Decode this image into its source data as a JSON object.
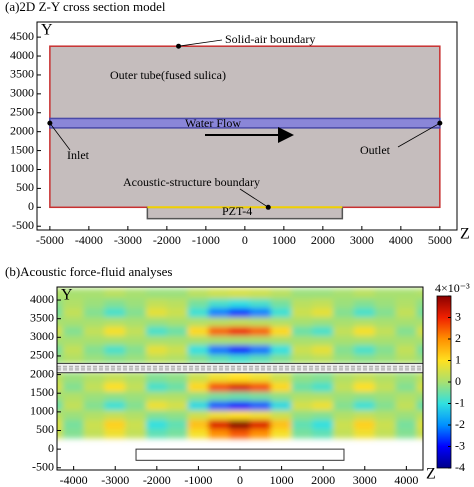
{
  "chart_data": [
    {
      "type": "schematic",
      "title": "(a)2D Z-Y cross section model",
      "xlabel": "Z",
      "ylabel": "Y",
      "xlim": [
        -5330,
        5440
      ],
      "ylim": [
        -600,
        4900
      ],
      "xticks": [
        -5000,
        -4000,
        -3000,
        -2000,
        -1000,
        0,
        1000,
        2000,
        3000,
        4000,
        5000
      ],
      "yticks": [
        -500,
        0,
        500,
        1000,
        1500,
        2000,
        2500,
        3000,
        3500,
        4000,
        4500
      ],
      "regions": [
        {
          "label": "Outer tube(fused sulica)",
          "x": [
            -5000,
            5000
          ],
          "y": [
            0,
            4260
          ],
          "fill": "#c5bdbd",
          "stroke": "#c83030"
        },
        {
          "label": "Water Flow",
          "x": [
            -5000,
            5000
          ],
          "y": [
            2100,
            2350
          ],
          "fill": "#8a86d8",
          "stroke": "#4a4aa8"
        },
        {
          "label": "PZT-4",
          "x": [
            -2500,
            2500
          ],
          "y": [
            -300,
            0
          ],
          "fill": "#c5bdbd",
          "stroke": "#555555"
        }
      ],
      "annotations": [
        {
          "text": "Solid-air boundary",
          "x": -1700,
          "y": 4260
        },
        {
          "text": "Inlet",
          "x": -5000,
          "y": 2225
        },
        {
          "text": "Outlet",
          "x": 5000,
          "y": 2225
        },
        {
          "text": "Acoustic-structure boundary",
          "x": 600,
          "y": 0
        }
      ]
    },
    {
      "type": "heatmap",
      "title": "(b)Acoustic force-fluid analyses",
      "xlabel": "Z",
      "ylabel": "Y",
      "xlim": [
        -4400,
        4400
      ],
      "ylim": [
        -560,
        4350
      ],
      "xticks": [
        -4000,
        -3000,
        -2000,
        -1000,
        0,
        1000,
        2000,
        3000,
        4000
      ],
      "yticks": [
        -500,
        0,
        500,
        1000,
        1500,
        2000,
        2500,
        3000,
        3500,
        4000
      ],
      "x": [
        -4500,
        -4000,
        -3500,
        -3000,
        -2500,
        -2000,
        -1500,
        -1000,
        -500,
        0,
        500,
        1000,
        1500,
        2000,
        2500,
        3000,
        3500,
        4000,
        4500
      ],
      "y": [
        425,
        675,
        925,
        1175,
        1425,
        1675,
        1925,
        2425,
        2675,
        2925,
        3175,
        3425,
        3675,
        3925,
        4175
      ],
      "values": [
        [
          0.4,
          -0.3,
          0.3,
          0.8,
          0.3,
          -0.6,
          -0.4,
          0.9,
          2,
          2.5,
          2,
          0.9,
          -0.4,
          -0.6,
          0.3,
          0.8,
          0.3,
          -0.3,
          0.4
        ],
        [
          0.6,
          -0.4,
          0.4,
          1.2,
          0.4,
          -1,
          -0.6,
          1.4,
          3.2,
          4,
          3.2,
          1.4,
          -0.6,
          -1,
          0.4,
          1.2,
          0.4,
          -0.4,
          0.6
        ],
        [
          0.2,
          -0.1,
          0.1,
          0.3,
          0.1,
          -0.3,
          -0.2,
          0.4,
          0.8,
          1,
          0.8,
          0.4,
          -0.2,
          -0.3,
          0.1,
          0.3,
          0.1,
          -0.1,
          0.2
        ],
        [
          -0.5,
          0.3,
          -0.3,
          -0.9,
          -0.3,
          0.8,
          0.5,
          -1.1,
          -2.4,
          -3,
          -2.4,
          -1.1,
          0.5,
          0.8,
          -0.3,
          -0.9,
          -0.3,
          0.3,
          -0.5
        ],
        [
          -0.1,
          0.1,
          -0.1,
          -0.2,
          -0.1,
          0.1,
          0.1,
          -0.2,
          -0.4,
          -0.5,
          -0.4,
          -0.2,
          0.1,
          0.1,
          -0.1,
          -0.2,
          -0.1,
          0.1,
          -0.1
        ],
        [
          0.5,
          -0.3,
          0.3,
          1,
          0.3,
          -0.8,
          -0.5,
          1.1,
          2.6,
          3.2,
          2.6,
          1.1,
          -0.5,
          -0.8,
          0.3,
          1,
          0.3,
          -0.3,
          0.5
        ],
        [
          0.2,
          -0.1,
          0.1,
          0.3,
          0.1,
          -0.3,
          -0.2,
          0.4,
          0.8,
          1,
          0.8,
          0.4,
          -0.2,
          -0.3,
          0.1,
          0.3,
          0.1,
          -0.1,
          0.2
        ],
        [
          -0.1,
          0.1,
          -0.1,
          -0.2,
          -0.1,
          0.2,
          0.1,
          -0.3,
          -0.6,
          -0.8,
          -0.6,
          -0.3,
          0.1,
          0.2,
          -0.1,
          -0.2,
          -0.1,
          0.1,
          -0.1
        ],
        [
          -0.4,
          0.3,
          -0.3,
          -0.8,
          -0.3,
          0.7,
          0.4,
          -1,
          -2.2,
          -2.8,
          -2.2,
          -1,
          0.4,
          0.7,
          -0.3,
          -0.8,
          -0.3,
          0.3,
          -0.4
        ],
        [
          0,
          0,
          0,
          0,
          0,
          0,
          0,
          0,
          0,
          0,
          0,
          0,
          0,
          0,
          0,
          0,
          0,
          0,
          0
        ],
        [
          0.5,
          -0.3,
          0.3,
          0.9,
          0.3,
          -0.8,
          -0.5,
          1.1,
          2.4,
          3,
          2.4,
          1.1,
          -0.5,
          -0.8,
          0.3,
          0.9,
          0.3,
          -0.3,
          0.5
        ],
        [
          0,
          0,
          0,
          0.1,
          0,
          -0.1,
          0,
          0.1,
          0.2,
          0.3,
          0.2,
          0.1,
          0,
          -0.1,
          0,
          0.1,
          0,
          0,
          0
        ],
        [
          -0.4,
          0.3,
          -0.3,
          -0.8,
          -0.3,
          0.7,
          0.4,
          -0.9,
          -2.1,
          -2.6,
          -2.1,
          -0.9,
          0.4,
          0.7,
          -0.3,
          -0.8,
          -0.3,
          0.3,
          -0.4
        ],
        [
          -0.2,
          0.1,
          -0.1,
          -0.3,
          -0.1,
          0.3,
          0.2,
          -0.4,
          -0.8,
          -1,
          -0.8,
          -0.4,
          0.2,
          0.3,
          -0.1,
          -0.3,
          -0.1,
          0.1,
          -0.2
        ],
        [
          0.1,
          0,
          0,
          0.2,
          0,
          -0.1,
          -0.1,
          0.2,
          0.4,
          0.5,
          0.4,
          0.2,
          -0.1,
          -0.1,
          0,
          0.2,
          0,
          0,
          0.1
        ]
      ],
      "regions": [
        {
          "x": [
            -4400,
            4400
          ],
          "y": [
            2050,
            2300
          ],
          "fill": "#eeeeee",
          "stroke": "#333333"
        },
        {
          "x": [
            -2500,
            2500
          ],
          "y": [
            -300,
            0
          ],
          "fill": "#ffffff",
          "stroke": "#333333"
        }
      ],
      "colorbar": {
        "clim": [
          -4,
          4
        ],
        "colors": [
          "#00008a",
          "#0000ff",
          "#0090ff",
          "#30e0e0",
          "#a8e070",
          "#ffe020",
          "#ff9000",
          "#f02000",
          "#8a0000"
        ],
        "ticks": [
          {
            "value": 4,
            "label": "4×10⁻³"
          },
          3,
          2,
          1,
          0,
          -1,
          -2,
          -3,
          -4
        ]
      }
    }
  ]
}
